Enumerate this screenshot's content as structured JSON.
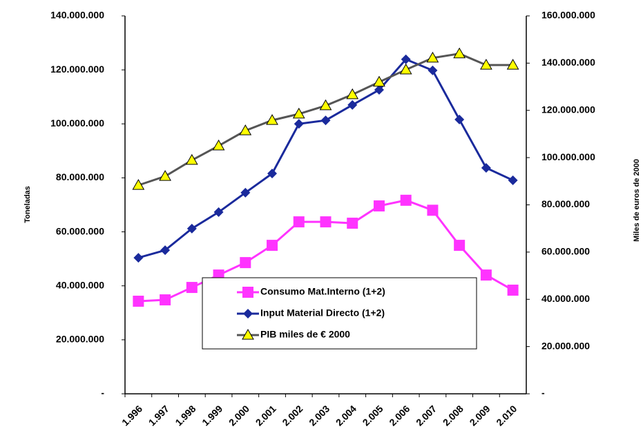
{
  "chart_data": {
    "type": "line",
    "y_label": "Toneladas",
    "y2_label": "Miles de euros de 2000",
    "categories": [
      "1.996",
      "1.997",
      "1.998",
      "1.999",
      "2.000",
      "2.001",
      "2.002",
      "2.003",
      "2.004",
      "2.005",
      "2.006",
      "2.007",
      "2.008",
      "2.009",
      "2.010"
    ],
    "ylim": [
      0,
      140000000
    ],
    "yticks": [
      {
        "value": 0,
        "label": "-"
      },
      {
        "value": 20000000,
        "label": "20.000.000"
      },
      {
        "value": 40000000,
        "label": "40.000.000"
      },
      {
        "value": 60000000,
        "label": "60.000.000"
      },
      {
        "value": 80000000,
        "label": "80.000.000"
      },
      {
        "value": 100000000,
        "label": "100.000.000"
      },
      {
        "value": 120000000,
        "label": "120.000.000"
      },
      {
        "value": 140000000,
        "label": "140.000.000"
      }
    ],
    "y2lim": [
      0,
      160000000
    ],
    "y2ticks": [
      {
        "value": 0,
        "label": "-"
      },
      {
        "value": 20000000,
        "label": "20.000.000"
      },
      {
        "value": 40000000,
        "label": "40.000.000"
      },
      {
        "value": 60000000,
        "label": "60.000.000"
      },
      {
        "value": 80000000,
        "label": "80.000.000"
      },
      {
        "value": 100000000,
        "label": "100.000.000"
      },
      {
        "value": 120000000,
        "label": "120.000.000"
      },
      {
        "value": 140000000,
        "label": "140.000.000"
      },
      {
        "value": 160000000,
        "label": "160.000.000"
      }
    ],
    "series": [
      {
        "name": "Consumo Mat.Interno (1+2)",
        "color": "#ff33ff",
        "marker": "square",
        "axis": "y",
        "values": [
          34300000,
          34800000,
          39400000,
          44000000,
          48600000,
          55000000,
          63700000,
          63700000,
          63200000,
          69600000,
          71700000,
          68000000,
          55000000,
          44000000,
          38400000
        ]
      },
      {
        "name": "Input Material Directo (1+2)",
        "color": "#1a2a9c",
        "marker": "diamond",
        "axis": "y",
        "values": [
          50400000,
          53200000,
          61200000,
          67300000,
          74500000,
          81600000,
          100000000,
          101300000,
          107000000,
          112600000,
          123900000,
          119800000,
          101600000,
          83700000,
          79100000
        ]
      },
      {
        "name": "PIB miles de € 2000",
        "color": "#555555",
        "marker": "triangle",
        "marker_fill": "#ffff00",
        "axis": "y2",
        "values": [
          88300000,
          92100000,
          98900000,
          105000000,
          111400000,
          115800000,
          118500000,
          122000000,
          126700000,
          132000000,
          137200000,
          142200000,
          144000000,
          139200000,
          139200000
        ]
      }
    ]
  }
}
